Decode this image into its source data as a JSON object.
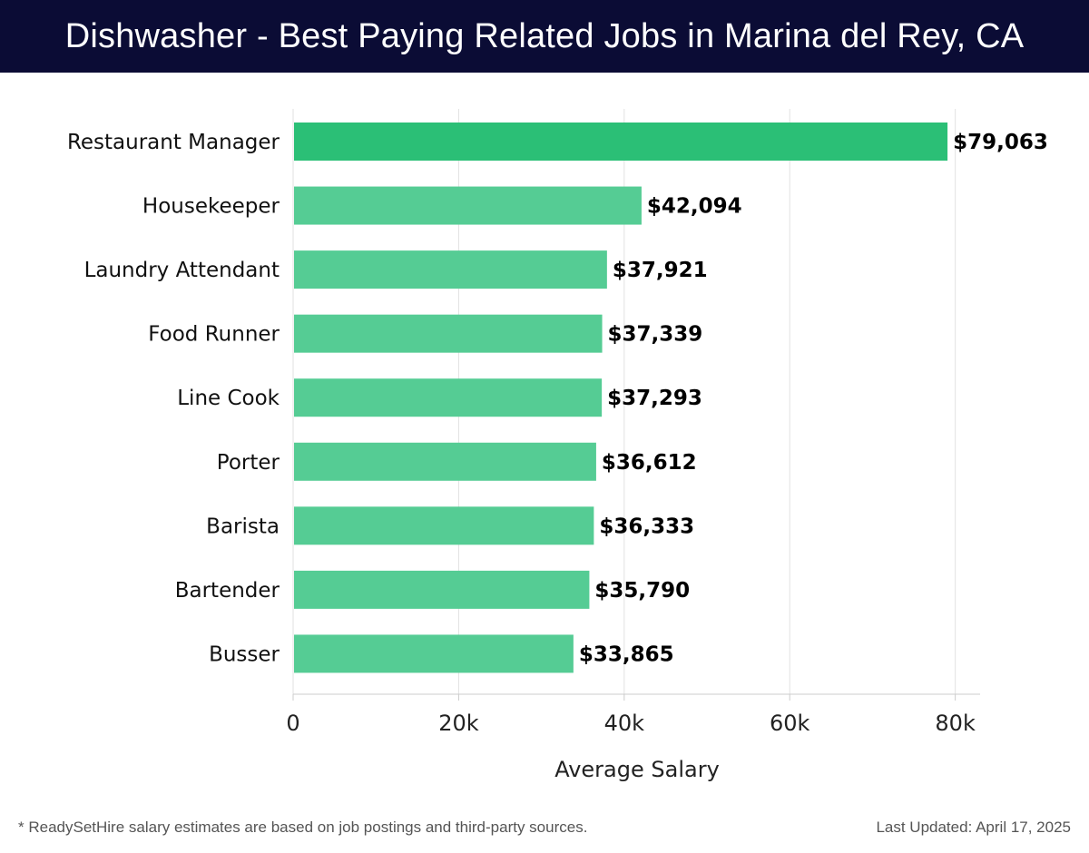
{
  "header": {
    "title": "Dishwasher - Best Paying Related Jobs in Marina del Rey, CA"
  },
  "colors": {
    "header_bg": "#0b0c35",
    "highlight_bar": "#2bbf76",
    "bar": "#55cc94"
  },
  "chart_data": {
    "type": "bar",
    "orientation": "horizontal",
    "categories": [
      "Restaurant Manager",
      "Housekeeper",
      "Laundry Attendant",
      "Food Runner",
      "Line Cook",
      "Porter",
      "Barista",
      "Bartender",
      "Busser"
    ],
    "values": [
      79063,
      42094,
      37921,
      37339,
      37293,
      36612,
      36333,
      35790,
      33865
    ],
    "value_labels": [
      "$79,063",
      "$42,094",
      "$37,921",
      "$37,339",
      "$37,293",
      "$36,612",
      "$36,333",
      "$35,790",
      "$33,865"
    ],
    "xlabel": "Average Salary",
    "xticks": [
      0,
      20000,
      40000,
      60000,
      80000
    ],
    "xtick_labels": [
      "0",
      "20k",
      "40k",
      "60k",
      "80k"
    ],
    "xlim": [
      0,
      83000
    ],
    "grid": "vertical",
    "highlight_index": 0
  },
  "footer": {
    "note": "* ReadySetHire salary estimates are based on job postings and third-party sources.",
    "updated_label": "Last Updated:",
    "updated_date": "April 17, 2025"
  }
}
